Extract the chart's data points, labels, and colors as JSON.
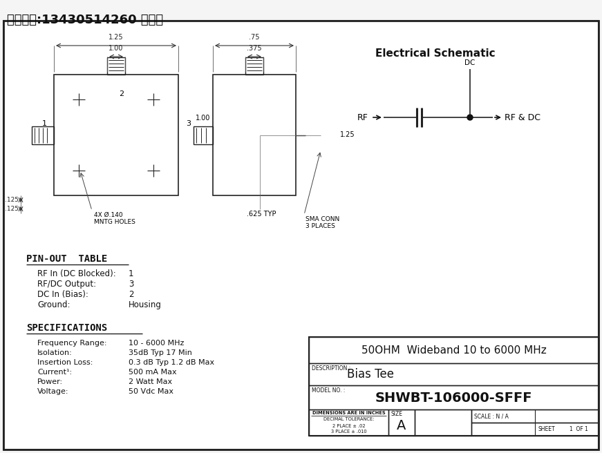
{
  "bg_color": "#f5f5f5",
  "header_text": "联系电话:13430514260 张先生",
  "title_block": {
    "main_title": "50OHM  Wideband 10 to 6000 MHz",
    "description_label": "DESCRIPTION :",
    "description": "Bias Tee",
    "model_label": "MODEL NO. :",
    "model": "SHWBT-106000-SFFF",
    "dim_note1": "DIMENSIONS ARE IN INCHES",
    "dim_note2": "DECIMAL TOLERANCE:",
    "dim_note3": "2 PLACE ± .02",
    "dim_note4": "3 PLACE ± .010",
    "size_label": "SIZE",
    "size_val": "A",
    "scale_label": "SCALE : N / A",
    "sheet_label": "SHEET",
    "sheet_val": "1  OF 1"
  },
  "pinout": {
    "title": "PIN-OUT  TABLE",
    "rows": [
      [
        "RF In (DC Blocked):",
        "1"
      ],
      [
        "RF/DC Output:",
        "3"
      ],
      [
        "DC In (Bias):",
        "2"
      ],
      [
        "Ground:",
        "Housing"
      ]
    ]
  },
  "specs": {
    "title": "SPECIFICATIONS",
    "rows": [
      [
        "Frequency Range:",
        "10 - 6000 MHz"
      ],
      [
        "Isolation:",
        "35dB Typ 17 Min"
      ],
      [
        "Insertion Loss:",
        "0.3 dB Typ 1.2 dB Max"
      ],
      [
        "Current¹:",
        "500 mA Max"
      ],
      [
        "Power:",
        "2 Watt Max"
      ],
      [
        "Voltage:",
        "50 Vdc Max"
      ]
    ]
  },
  "schematic_title": "Electrical Schematic"
}
